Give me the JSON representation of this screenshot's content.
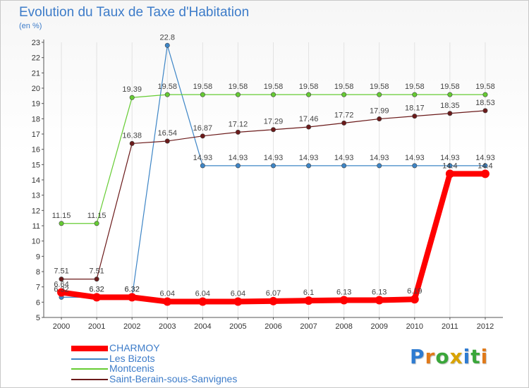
{
  "chart_data": {
    "type": "line",
    "title": "Evolution du Taux de Taxe d'Habitation",
    "ylabel": "(en %)",
    "x": [
      "2000",
      "2001",
      "2002",
      "2003",
      "2004",
      "2005",
      "2006",
      "2007",
      "2008",
      "2009",
      "2010",
      "2011",
      "2012"
    ],
    "ylim": [
      5,
      23
    ],
    "yticks": [
      5,
      6,
      7,
      8,
      9,
      10,
      11,
      12,
      13,
      14,
      15,
      16,
      17,
      18,
      19,
      20,
      21,
      22,
      23
    ],
    "grid": "vertical",
    "legend_position": "bottom-left",
    "series": [
      {
        "name": "CHARMOY",
        "color": "#ff0000",
        "values": [
          6.64,
          6.32,
          6.32,
          6.04,
          6.04,
          6.04,
          6.07,
          6.1,
          6.13,
          6.13,
          6.19,
          14.4,
          14.4
        ],
        "labels": [
          "6.64",
          "6.32",
          "6.32",
          "6.04",
          "6.04",
          "6.04",
          "6.07",
          "6.1",
          "6.13",
          "6.13",
          "6.19",
          "14.4",
          "14.4"
        ]
      },
      {
        "name": "Les Bizots",
        "color": "#3d85c6",
        "values": [
          6.32,
          6.32,
          6.32,
          22.8,
          14.93,
          14.93,
          14.93,
          14.93,
          14.93,
          14.93,
          14.93,
          14.93,
          14.93
        ],
        "labels": [
          "6.32",
          "6.32",
          "6.32",
          "22.8",
          "14.93",
          "14.93",
          "14.93",
          "14.93",
          "14.93",
          "14.93",
          "14.93",
          "14.93",
          "14.93"
        ]
      },
      {
        "name": "Montcenis",
        "color": "#66cc33",
        "values": [
          11.15,
          11.15,
          19.39,
          19.58,
          19.58,
          19.58,
          19.58,
          19.58,
          19.58,
          19.58,
          19.58,
          19.58,
          19.58
        ],
        "labels": [
          "11.15",
          "11.15",
          "19.39",
          "19.58",
          "19.58",
          "19.58",
          "19.58",
          "19.58",
          "19.58",
          "19.58",
          "19.58",
          "19.58",
          "19.58"
        ]
      },
      {
        "name": "Saint-Berain-sous-Sanvignes",
        "color": "#6b1a1a",
        "values": [
          7.51,
          7.51,
          16.38,
          16.54,
          16.87,
          17.12,
          17.29,
          17.46,
          17.72,
          17.99,
          18.17,
          18.35,
          18.53
        ],
        "labels": [
          "7.51",
          "7.51",
          "16.38",
          "16.54",
          "16.87",
          "17.12",
          "17.29",
          "17.46",
          "17.72",
          "17.99",
          "18.17",
          "18.35",
          "18.53"
        ]
      }
    ]
  },
  "logo": {
    "text": "Proxiti"
  }
}
